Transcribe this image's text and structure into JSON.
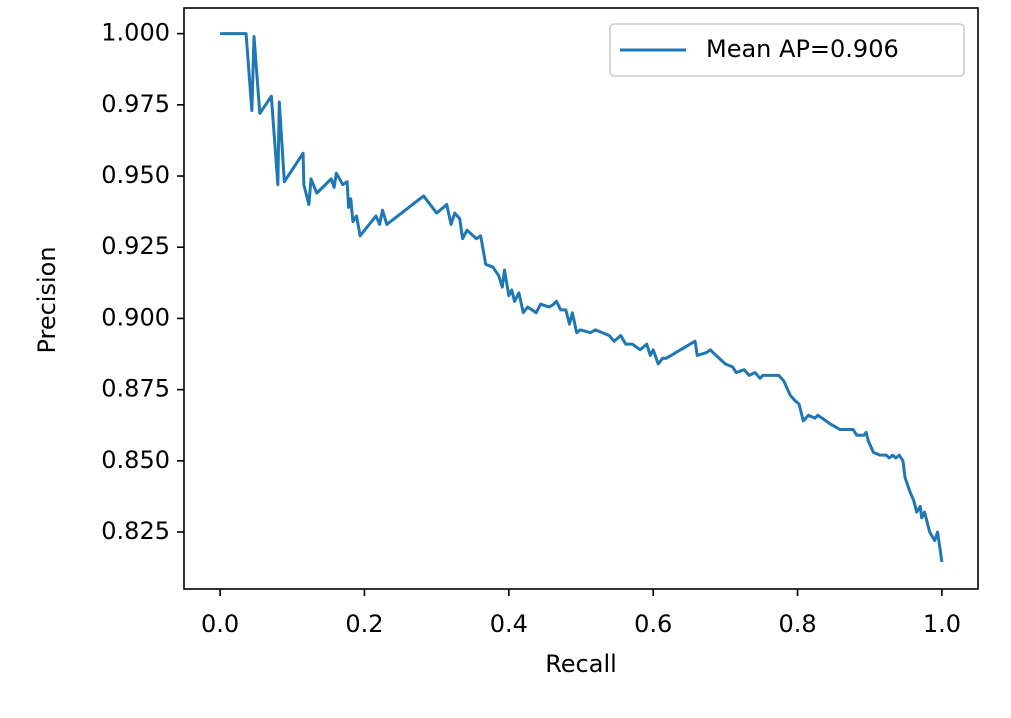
{
  "chart_data": {
    "type": "line",
    "x_label": "Recall",
    "y_label": "Precision",
    "x": [
      0,
      0.036,
      0.044,
      0.047,
      0.055,
      0.071,
      0.08,
      0.082,
      0.089,
      0.115,
      0.116,
      0.123,
      0.126,
      0.134,
      0.154,
      0.158,
      0.161,
      0.17,
      0.176,
      0.178,
      0.181,
      0.184,
      0.189,
      0.194,
      0.216,
      0.221,
      0.225,
      0.231,
      0.282,
      0.3,
      0.314,
      0.32,
      0.325,
      0.332,
      0.336,
      0.342,
      0.355,
      0.361,
      0.368,
      0.378,
      0.386,
      0.391,
      0.394,
      0.4,
      0.404,
      0.408,
      0.414,
      0.42,
      0.426,
      0.438,
      0.444,
      0.456,
      0.462,
      0.466,
      0.472,
      0.479,
      0.484,
      0.488,
      0.494,
      0.499,
      0.513,
      0.52,
      0.539,
      0.546,
      0.555,
      0.562,
      0.571,
      0.582,
      0.591,
      0.596,
      0.6,
      0.607,
      0.613,
      0.618,
      0.658,
      0.661,
      0.674,
      0.679,
      0.683,
      0.7,
      0.71,
      0.715,
      0.726,
      0.733,
      0.741,
      0.748,
      0.752,
      0.769,
      0.774,
      0.781,
      0.79,
      0.797,
      0.802,
      0.808,
      0.815,
      0.824,
      0.828,
      0.834,
      0.845,
      0.859,
      0.877,
      0.882,
      0.892,
      0.895,
      0.898,
      0.905,
      0.914,
      0.923,
      0.927,
      0.932,
      0.936,
      0.941,
      0.946,
      0.949,
      0.956,
      0.961,
      0.965,
      0.97,
      0.972,
      0.976,
      0.983,
      0.99,
      0.994,
      1.0
    ],
    "series": [
      {
        "name": "Mean AP=0.906",
        "color": "#1f77b4",
        "values": [
          1.0,
          1.0,
          0.973,
          0.999,
          0.972,
          0.978,
          0.947,
          0.976,
          0.948,
          0.958,
          0.947,
          0.94,
          0.949,
          0.944,
          0.949,
          0.946,
          0.951,
          0.947,
          0.948,
          0.939,
          0.942,
          0.934,
          0.936,
          0.929,
          0.936,
          0.933,
          0.938,
          0.933,
          0.943,
          0.937,
          0.94,
          0.933,
          0.937,
          0.935,
          0.928,
          0.931,
          0.928,
          0.929,
          0.919,
          0.918,
          0.915,
          0.911,
          0.917,
          0.908,
          0.91,
          0.906,
          0.909,
          0.902,
          0.904,
          0.902,
          0.905,
          0.904,
          0.905,
          0.906,
          0.903,
          0.903,
          0.898,
          0.902,
          0.895,
          0.896,
          0.895,
          0.896,
          0.894,
          0.892,
          0.894,
          0.891,
          0.891,
          0.889,
          0.891,
          0.887,
          0.889,
          0.884,
          0.886,
          0.886,
          0.892,
          0.887,
          0.888,
          0.889,
          0.888,
          0.884,
          0.883,
          0.881,
          0.882,
          0.88,
          0.881,
          0.879,
          0.88,
          0.88,
          0.88,
          0.878,
          0.873,
          0.871,
          0.87,
          0.864,
          0.866,
          0.865,
          0.866,
          0.865,
          0.863,
          0.861,
          0.861,
          0.859,
          0.859,
          0.86,
          0.857,
          0.853,
          0.852,
          0.852,
          0.851,
          0.852,
          0.851,
          0.852,
          0.85,
          0.844,
          0.839,
          0.836,
          0.832,
          0.834,
          0.83,
          0.832,
          0.825,
          0.822,
          0.825,
          0.8145
        ]
      }
    ],
    "xlim": [
      -0.05,
      1.05
    ],
    "xticks": [
      {
        "value": 0,
        "label": "0.0"
      },
      0.2,
      0.4,
      0.6,
      0.8,
      {
        "value": 1,
        "label": "1.0"
      }
    ],
    "ylim": [
      0.805,
      1.009
    ],
    "yticks": [
      0.825,
      {
        "value": 0.85,
        "label": "0.850"
      },
      0.875,
      {
        "value": 0.9,
        "label": "0.900"
      },
      0.925,
      {
        "value": 0.95,
        "label": "0.950"
      },
      0.975,
      {
        "value": 1,
        "label": "1.000"
      }
    ],
    "grid": false,
    "legend": "upper right"
  }
}
